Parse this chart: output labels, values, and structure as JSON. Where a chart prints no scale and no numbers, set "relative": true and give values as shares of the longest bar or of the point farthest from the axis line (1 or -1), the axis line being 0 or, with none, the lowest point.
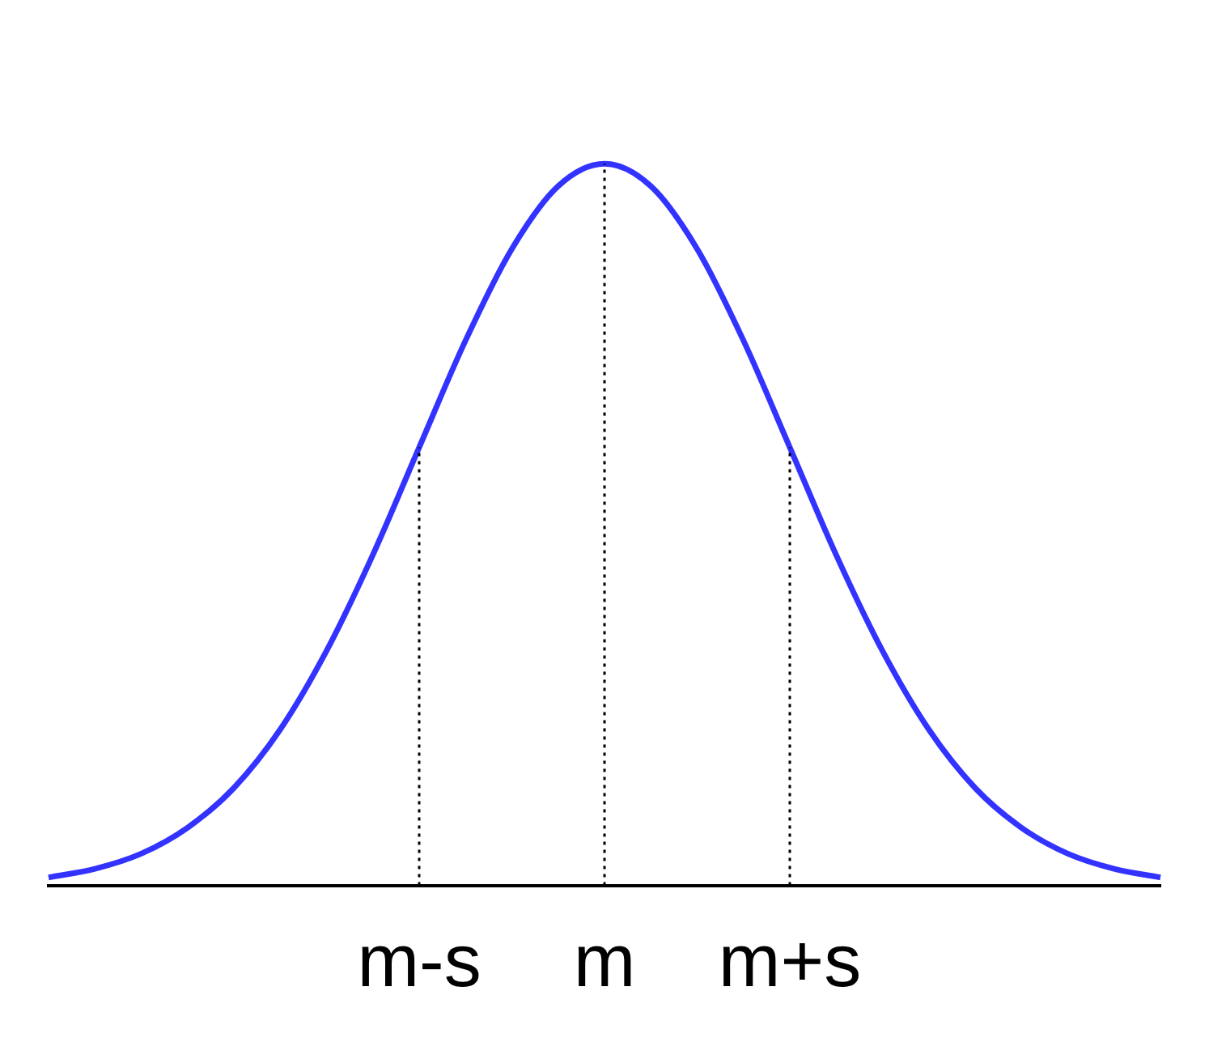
{
  "chart_data": {
    "type": "line",
    "relative": true,
    "grid": false,
    "legend": false,
    "marker": "none",
    "line_style": "solid",
    "categories": [
      null,
      null,
      null,
      null,
      null,
      null,
      null,
      null,
      "m-s",
      null,
      null,
      null,
      "m",
      null,
      null,
      null,
      "m+s",
      null,
      null,
      null,
      null,
      null,
      null,
      null,
      null
    ],
    "series": [
      {
        "color": "#3333ff",
        "values": [
          0.011,
          0.023,
          0.044,
          0.08,
          0.135,
          0.216,
          0.325,
          0.458,
          0.607,
          0.755,
          0.882,
          0.969,
          1,
          0.969,
          0.882,
          0.755,
          0.607,
          0.458,
          0.325,
          0.216,
          0.135,
          0.08,
          0.044,
          0.023,
          0.011
        ]
      }
    ],
    "ref_lines": [
      {
        "axis": "x",
        "value": "m-s",
        "color": "#000000",
        "line_style": "dotted"
      },
      {
        "axis": "x",
        "value": "m",
        "color": "#000000",
        "line_style": "dotted"
      },
      {
        "axis": "x",
        "value": "m+s",
        "color": "#000000",
        "line_style": "dotted"
      }
    ]
  }
}
